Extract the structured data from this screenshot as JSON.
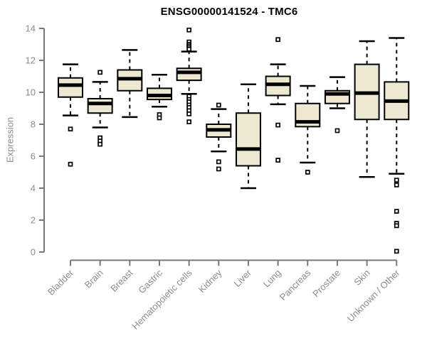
{
  "header": {
    "title": "ENSG00000141524 - TMC6"
  },
  "chart_data": {
    "type": "boxplot",
    "title": "ENSG00000141524 - TMC6",
    "ylabel": "Expression",
    "ylim": [
      0,
      14
    ],
    "yticks": [
      0,
      2,
      4,
      6,
      8,
      10,
      12,
      14
    ],
    "grid": false,
    "legend": "none",
    "axis_color": "#787878",
    "label_color": "#8c8c8c",
    "box_fill": "#EDE8D2",
    "box_stroke": "#000000",
    "categories": [
      "Bladder",
      "Brain",
      "Breast",
      "Gastric",
      "Hematopoietic cells",
      "Kidney",
      "Liver",
      "Lung",
      "Pancreas",
      "Prostate",
      "Skin",
      "Unknown / Other"
    ],
    "series": [
      {
        "name": "Bladder",
        "whisker_low": 8.55,
        "q1": 9.7,
        "median": 10.45,
        "q3": 10.9,
        "whisker_high": 11.75,
        "outliers": [
          7.7,
          5.5
        ]
      },
      {
        "name": "Brain",
        "whisker_low": 7.8,
        "q1": 8.7,
        "median": 9.3,
        "q3": 9.6,
        "whisker_high": 10.65,
        "outliers": [
          11.25,
          7.15,
          6.95,
          6.75
        ]
      },
      {
        "name": "Breast",
        "whisker_low": 8.45,
        "q1": 10.1,
        "median": 10.85,
        "q3": 11.4,
        "whisker_high": 12.65,
        "outliers": []
      },
      {
        "name": "Gastric",
        "whisker_low": 9.1,
        "q1": 9.55,
        "median": 9.8,
        "q3": 10.25,
        "whisker_high": 11.1,
        "outliers": [
          8.6,
          8.4
        ]
      },
      {
        "name": "Hematopoietic cells",
        "whisker_low": 9.9,
        "q1": 10.75,
        "median": 11.25,
        "q3": 11.5,
        "whisker_high": 12.55,
        "outliers": [
          13.9,
          13.15,
          13.0,
          12.9,
          12.8,
          12.7,
          9.75,
          9.55,
          9.4,
          9.2,
          9.05,
          8.85,
          8.65,
          8.15
        ]
      },
      {
        "name": "Kidney",
        "whisker_low": 6.3,
        "q1": 7.2,
        "median": 7.65,
        "q3": 8.0,
        "whisker_high": 8.95,
        "outliers": [
          9.2,
          5.65,
          5.2
        ]
      },
      {
        "name": "Liver",
        "whisker_low": 4.0,
        "q1": 5.4,
        "median": 6.45,
        "q3": 8.7,
        "whisker_high": 10.5,
        "outliers": []
      },
      {
        "name": "Lung",
        "whisker_low": 9.25,
        "q1": 9.8,
        "median": 10.5,
        "q3": 11.0,
        "whisker_high": 11.75,
        "outliers": [
          13.3,
          7.95,
          5.75
        ]
      },
      {
        "name": "Pancreas",
        "whisker_low": 5.6,
        "q1": 7.85,
        "median": 8.15,
        "q3": 9.3,
        "whisker_high": 10.4,
        "outliers": [
          5.0
        ]
      },
      {
        "name": "Prostate",
        "whisker_low": 9.0,
        "q1": 9.3,
        "median": 9.9,
        "q3": 10.1,
        "whisker_high": 10.95,
        "outliers": [
          7.6
        ]
      },
      {
        "name": "Skin",
        "whisker_low": 4.7,
        "q1": 8.3,
        "median": 9.95,
        "q3": 11.75,
        "whisker_high": 13.2,
        "outliers": []
      },
      {
        "name": "Unknown / Other",
        "whisker_low": 4.9,
        "q1": 8.3,
        "median": 9.45,
        "q3": 10.65,
        "whisker_high": 13.4,
        "outliers": [
          4.5,
          4.2,
          2.55,
          1.8,
          1.65,
          0.05
        ]
      }
    ]
  }
}
